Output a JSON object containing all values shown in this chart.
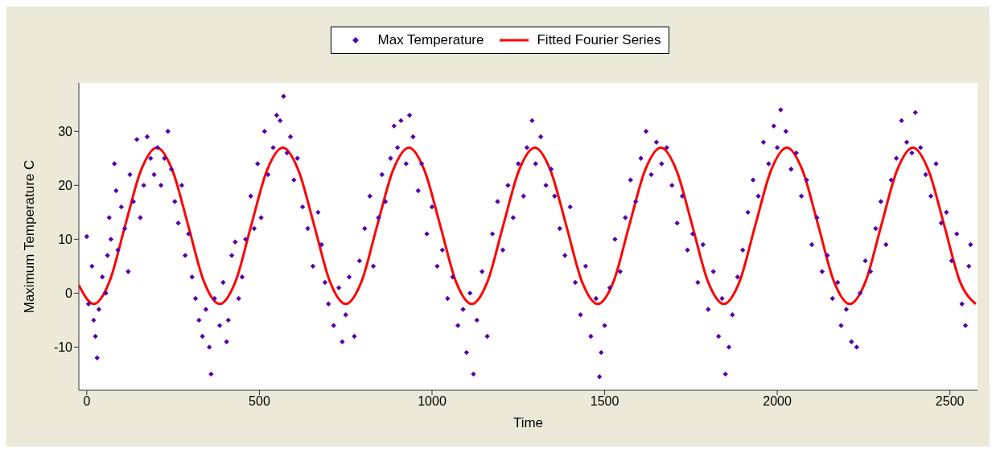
{
  "chart_data": {
    "type": "scatter",
    "xlabel": "Time",
    "ylabel": "Maximum Temperature C",
    "xlim": [
      -23,
      2580
    ],
    "xticks": [
      0,
      500,
      1000,
      1500,
      2000,
      2500
    ],
    "ylim": [
      -18,
      39
    ],
    "yticks": [
      -10,
      0,
      10,
      20,
      30
    ],
    "grid": false,
    "legend": "top",
    "marker": "diamond",
    "series": [
      {
        "name": "Max Temperature",
        "color": "#5500aa",
        "x": [
          0,
          5,
          15,
          20,
          25,
          30,
          35,
          45,
          55,
          60,
          65,
          70,
          80,
          85,
          90,
          100,
          110,
          120,
          125,
          135,
          145,
          155,
          165,
          175,
          185,
          195,
          205,
          215,
          225,
          235,
          245,
          255,
          265,
          275,
          285,
          295,
          305,
          315,
          325,
          335,
          345,
          355,
          360,
          370,
          385,
          395,
          405,
          410,
          420,
          430,
          440,
          450,
          460,
          475,
          485,
          495,
          505,
          515,
          525,
          540,
          550,
          560,
          570,
          580,
          590,
          600,
          610,
          625,
          640,
          655,
          670,
          680,
          690,
          700,
          715,
          730,
          740,
          750,
          760,
          775,
          790,
          805,
          820,
          830,
          845,
          855,
          865,
          880,
          890,
          900,
          910,
          925,
          935,
          945,
          960,
          970,
          985,
          1000,
          1015,
          1030,
          1045,
          1060,
          1075,
          1090,
          1100,
          1110,
          1120,
          1130,
          1145,
          1160,
          1175,
          1190,
          1205,
          1220,
          1235,
          1250,
          1265,
          1275,
          1290,
          1300,
          1315,
          1330,
          1345,
          1355,
          1370,
          1385,
          1400,
          1415,
          1430,
          1445,
          1460,
          1475,
          1485,
          1490,
          1500,
          1515,
          1530,
          1545,
          1560,
          1575,
          1590,
          1605,
          1620,
          1635,
          1650,
          1665,
          1680,
          1695,
          1710,
          1725,
          1740,
          1755,
          1770,
          1785,
          1800,
          1815,
          1830,
          1840,
          1850,
          1860,
          1870,
          1885,
          1900,
          1915,
          1930,
          1945,
          1960,
          1975,
          1990,
          2000,
          2010,
          2025,
          2040,
          2055,
          2070,
          2085,
          2100,
          2115,
          2130,
          2145,
          2160,
          2175,
          2185,
          2200,
          2215,
          2230,
          2240,
          2255,
          2270,
          2285,
          2300,
          2315,
          2330,
          2345,
          2360,
          2375,
          2390,
          2400,
          2415,
          2430,
          2445,
          2460,
          2475,
          2490,
          2505,
          2520,
          2535,
          2545,
          2555,
          2560
        ],
        "values": [
          10.5,
          -2,
          5,
          -5,
          -8,
          -12,
          -3,
          3,
          0,
          7,
          14,
          10,
          24,
          19,
          8,
          16,
          12,
          4,
          22,
          17,
          28.5,
          14,
          20,
          29,
          25,
          22,
          27,
          20,
          25,
          30,
          23,
          17,
          13,
          20,
          7,
          11,
          3,
          -1,
          -5,
          -8,
          -3,
          -10,
          -15,
          -1,
          -6,
          2,
          -9,
          -5,
          7,
          9.5,
          -1,
          3,
          10,
          18,
          12,
          24,
          14,
          30,
          22,
          27,
          33,
          32,
          36.5,
          26,
          29,
          21,
          25,
          16,
          12,
          5,
          15,
          9,
          2,
          -2,
          -6,
          1,
          -9,
          -4,
          3,
          -8,
          6,
          12,
          18,
          5,
          14,
          22,
          17,
          25,
          31,
          27,
          32,
          24,
          33,
          29,
          19,
          24,
          11,
          16,
          5,
          8,
          -1,
          3,
          -6,
          -3,
          -11,
          0,
          -15,
          -5,
          4,
          -8,
          11,
          17,
          8,
          20,
          14,
          24,
          18,
          27,
          32,
          24,
          29,
          20,
          23,
          18,
          12,
          7,
          16,
          2,
          -4,
          5,
          -8,
          -1,
          -15.5,
          -11,
          -6,
          1,
          10,
          4,
          14,
          21,
          17,
          25,
          30,
          22,
          28,
          24,
          27,
          20,
          13,
          18,
          8,
          11,
          2,
          9,
          -3,
          4,
          -8,
          -1,
          -15,
          -10,
          -4,
          3,
          8,
          15,
          21,
          18,
          28,
          24,
          31,
          27,
          34,
          30,
          23,
          26,
          18,
          21,
          9,
          14,
          4,
          7,
          -1,
          2,
          -6,
          -3,
          -9,
          -10,
          0,
          6,
          4,
          12,
          17,
          9,
          21,
          25,
          32,
          28,
          26,
          33.5,
          27,
          22,
          18,
          24,
          13,
          15,
          6,
          11,
          -2,
          -6,
          5,
          9
        ]
      },
      {
        "name": "Fitted Fourier Series",
        "type": "line",
        "color": "#ff0000",
        "marker": "none",
        "x": [
          -23,
          20,
          66,
          111,
          157,
          203,
          248,
          294,
          339,
          385,
          431,
          476,
          522,
          568,
          613,
          659,
          704,
          750,
          796,
          841,
          887,
          933,
          978,
          1024,
          1069,
          1115,
          1161,
          1206,
          1252,
          1298,
          1343,
          1389,
          1434,
          1480,
          1526,
          1571,
          1617,
          1663,
          1708,
          1754,
          1799,
          1845,
          1891,
          1936,
          1982,
          2028,
          2073,
          2119,
          2164,
          2210,
          2256,
          2301,
          2347,
          2393,
          2438,
          2484,
          2529,
          2575
        ],
        "values": [
          1.5,
          -2,
          2.2,
          12.5,
          22.8,
          27,
          22.8,
          12.5,
          2.2,
          -2,
          2.2,
          12.5,
          22.8,
          27,
          22.8,
          12.5,
          2.2,
          -2,
          2.2,
          12.5,
          22.8,
          27,
          22.8,
          12.5,
          2.2,
          -2,
          2.2,
          12.5,
          22.8,
          27,
          22.8,
          12.5,
          2.2,
          -2,
          2.2,
          12.5,
          22.8,
          27,
          22.8,
          12.5,
          2.2,
          -2,
          2.2,
          12.5,
          22.8,
          27,
          22.8,
          12.5,
          2.2,
          -2,
          2.2,
          12.5,
          22.8,
          27,
          22.8,
          12.5,
          2.2,
          -2
        ]
      }
    ]
  }
}
